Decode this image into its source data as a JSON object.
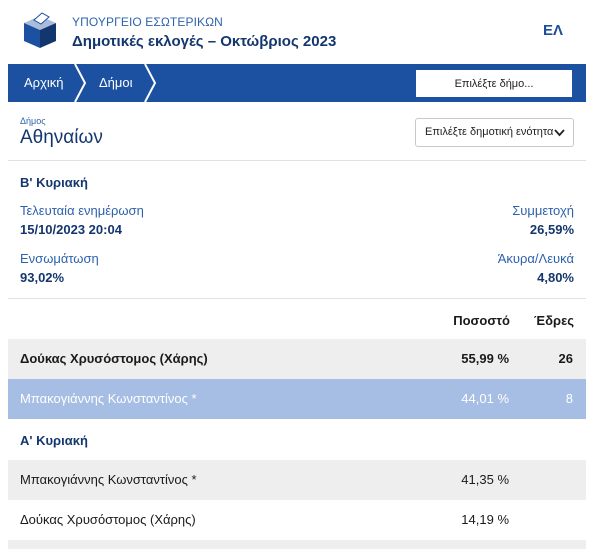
{
  "header": {
    "ministry": "ΥΠΟΥΡΓΕΙΟ ΕΣΩΤΕΡΙΚΩΝ",
    "election": "Δημοτικές εκλογές – Οκτώβριος 2023",
    "language": "ΕΛ"
  },
  "nav": {
    "home": "Αρχική",
    "municipalities": "Δήμοι",
    "select_municipality": "Επιλέξτε δήμο..."
  },
  "municipality": {
    "caption": "Δήμος",
    "name": "Αθηναίων",
    "unit_select": "Επιλέξτε δημοτική ενότητα"
  },
  "second_round": {
    "title": "Β' Κυριακή",
    "last_update_label": "Τελευταία ενημέρωση",
    "last_update_value": "15/10/2023 20:04",
    "turnout_label": "Συμμετοχή",
    "turnout_value": "26,59%",
    "integration_label": "Ενσωμάτωση",
    "integration_value": "93,02%",
    "invalid_label": "Άκυρα/Λευκά",
    "invalid_value": "4,80%"
  },
  "columns": {
    "percent": "Ποσοστό",
    "seats": "Έδρες"
  },
  "second_round_results": [
    {
      "name": "Δούκας Χρυσόστομος (Χάρης)",
      "percent": "55,99 %",
      "seats": "26"
    },
    {
      "name": "Μπακογιάννης Κωνσταντίνος *",
      "percent": "44,01 %",
      "seats": "8"
    }
  ],
  "first_round": {
    "title": "Α' Κυριακή"
  },
  "first_round_results": [
    {
      "name": "Μπακογιάννης Κωνσταντίνος *",
      "percent": "41,35 %"
    },
    {
      "name": "Δούκας Χρυσόστομος (Χάρης)",
      "percent": "14,19 %"
    }
  ],
  "colors": {
    "nav": "#1c50a0",
    "highlight_row": "#a6bee3",
    "grey_row": "#eeeeef",
    "dark_text": "#14366e",
    "label_text": "#2e62ad"
  }
}
